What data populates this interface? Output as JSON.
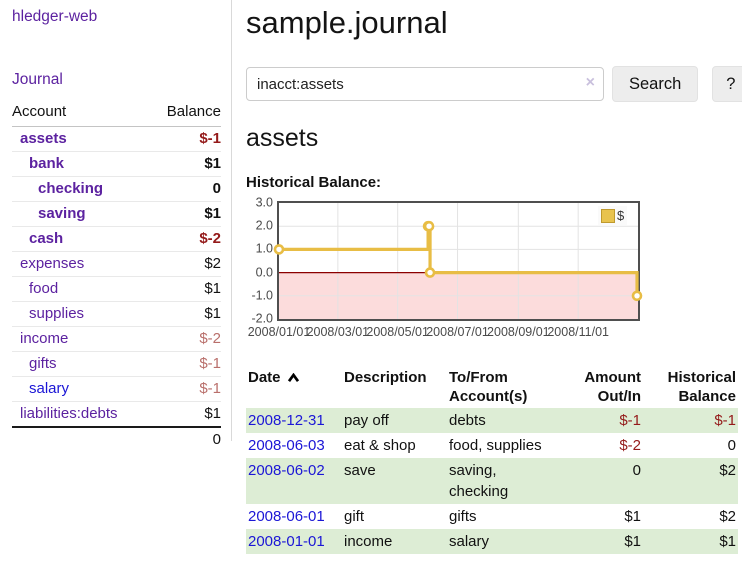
{
  "colors": {
    "accent_purple": "#5c22a0",
    "link_blue": "#1b16d6",
    "negative_strong": "#941a1a",
    "negative_soft": "#b96f6b",
    "row_green": "#ddedd5",
    "chart_line": "#e8bd45",
    "chart_negative_region": "#fcdcdc",
    "chart_zero_line": "#8b0000"
  },
  "app": {
    "title": "hledger-web",
    "journal_link": "Journal"
  },
  "sidebar": {
    "header": {
      "account": "Account",
      "balance": "Balance"
    },
    "accounts": [
      {
        "name": "assets",
        "balance": "$-1",
        "level": 0,
        "bold": true,
        "neg": "strong"
      },
      {
        "name": "bank",
        "balance": "$1",
        "level": 1,
        "bold": true,
        "neg": "none"
      },
      {
        "name": "checking",
        "balance": "0",
        "level": 2,
        "bold": true,
        "neg": "none"
      },
      {
        "name": "saving",
        "balance": "$1",
        "level": 2,
        "bold": true,
        "neg": "none"
      },
      {
        "name": "cash",
        "balance": "$-2",
        "level": 1,
        "bold": true,
        "neg": "strong"
      },
      {
        "name": "expenses",
        "balance": "$2",
        "level": 0,
        "bold": false,
        "neg": "none"
      },
      {
        "name": "food",
        "balance": "$1",
        "level": 1,
        "bold": false,
        "neg": "none"
      },
      {
        "name": "supplies",
        "balance": "$1",
        "level": 1,
        "bold": false,
        "neg": "none"
      },
      {
        "name": "income",
        "balance": "$-2",
        "level": 0,
        "bold": false,
        "neg": "soft"
      },
      {
        "name": "gifts",
        "balance": "$-1",
        "level": 1,
        "bold": false,
        "neg": "soft"
      },
      {
        "name": "salary",
        "balance": "$-1",
        "level": 1,
        "bold": false,
        "neg": "soft",
        "link_color": "blue"
      },
      {
        "name": "liabilities:debts",
        "balance": "$1",
        "level": 0,
        "bold": false,
        "neg": "none"
      }
    ],
    "total": "0"
  },
  "main": {
    "title": "sample.journal",
    "search": {
      "value": "inacct:assets",
      "clear_icon": "×",
      "search_button": "Search",
      "help_button": "?"
    },
    "account_heading": "assets"
  },
  "chart_data": {
    "type": "line",
    "title": "Historical Balance:",
    "step": true,
    "series": [
      {
        "name": "$",
        "color": "#e8bd45",
        "points": [
          [
            "2008-01-01",
            1
          ],
          [
            "2008-06-01",
            2
          ],
          [
            "2008-06-02",
            2
          ],
          [
            "2008-06-03",
            0
          ],
          [
            "2008-12-31",
            -1
          ]
        ]
      }
    ],
    "x_ticks": [
      "2008/01/01",
      "2008/03/01",
      "2008/05/01",
      "2008/07/01",
      "2008/09/01",
      "2008/11/01"
    ],
    "y_ticks": [
      "3.0",
      "2.0",
      "1.0",
      "0.0",
      "-1.0",
      "-2.0"
    ],
    "xlim": [
      "2008-01-01",
      "2009-01-01"
    ],
    "ylim": [
      -2,
      3
    ],
    "grid": true,
    "legend_position": "top-right",
    "negative_region": true
  },
  "register": {
    "headers": [
      "Date",
      "Description",
      "To/From Account(s)",
      "Amount Out/In",
      "Historical Balance"
    ],
    "sort": {
      "column": "Date",
      "direction": "ascending"
    },
    "rows": [
      {
        "date": "2008-12-31",
        "description": "pay off",
        "accounts": "debts",
        "amount": "$-1",
        "balance": "$-1"
      },
      {
        "date": "2008-06-03",
        "description": "eat & shop",
        "accounts": "food, supplies",
        "amount": "$-2",
        "balance": "0"
      },
      {
        "date": "2008-06-02",
        "description": "save",
        "accounts": "saving, checking",
        "amount": "0",
        "balance": "$2"
      },
      {
        "date": "2008-06-01",
        "description": "gift",
        "accounts": "gifts",
        "amount": "$1",
        "balance": "$2"
      },
      {
        "date": "2008-01-01",
        "description": "income",
        "accounts": "salary",
        "amount": "$1",
        "balance": "$1"
      }
    ]
  }
}
